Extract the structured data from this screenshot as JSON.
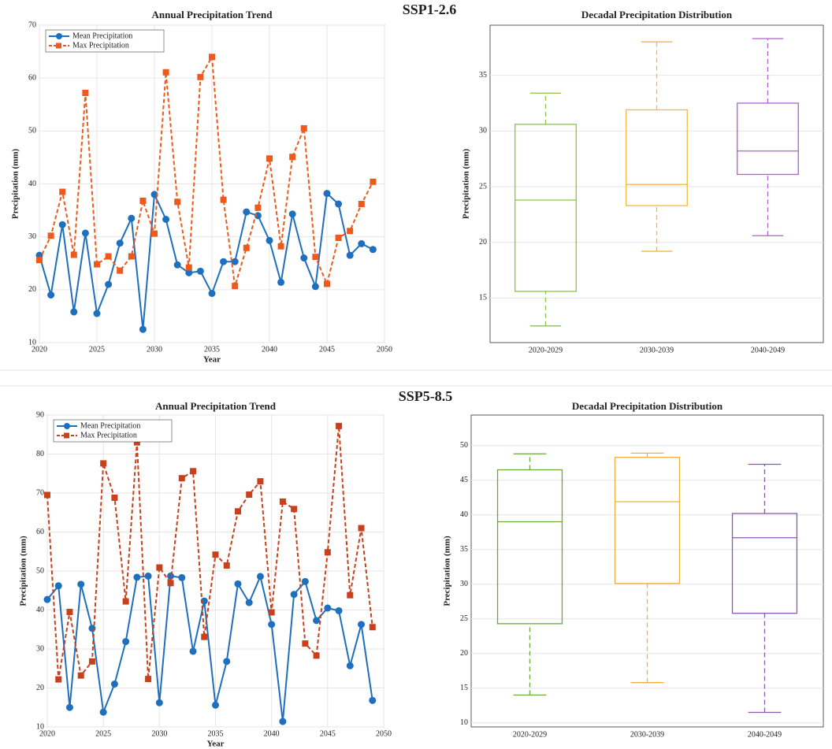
{
  "section_titles": [
    "SSP1-2.6",
    "SSP5-8.5"
  ],
  "chart_data": [
    {
      "type": "line",
      "title": "Annual Precipitation Trend",
      "xlabel": "Year",
      "ylabel": "Precipitation (mm)",
      "x": [
        2020,
        2021,
        2022,
        2023,
        2024,
        2025,
        2026,
        2027,
        2028,
        2029,
        2030,
        2031,
        2032,
        2033,
        2034,
        2035,
        2036,
        2037,
        2038,
        2039,
        2040,
        2041,
        2042,
        2043,
        2044,
        2045,
        2046,
        2047,
        2048,
        2049
      ],
      "series": [
        {
          "name": "Mean Precipitation",
          "color": "#1f6fbf",
          "marker": "circle",
          "linestyle": "solid",
          "values": [
            26.5,
            19,
            32.3,
            15.8,
            30.7,
            15.5,
            21,
            28.8,
            33.5,
            12.5,
            38,
            33.3,
            24.7,
            23.2,
            23.5,
            19.3,
            25.3,
            25.3,
            34.7,
            34,
            29.3,
            21.4,
            34.3,
            26,
            20.6,
            38.2,
            36.2,
            26.5,
            28.7,
            27.6
          ]
        },
        {
          "name": "Max Precipitation",
          "color": "#ee5a1c",
          "marker": "square",
          "linestyle": "dashed",
          "values": [
            25.6,
            30.2,
            38.5,
            26.6,
            57.2,
            24.8,
            26.3,
            23.6,
            26.3,
            36.8,
            30.6,
            61.1,
            36.6,
            24.2,
            60.2,
            64,
            37,
            20.7,
            27.9,
            35.5,
            44.8,
            28.2,
            45.1,
            50.5,
            26.2,
            21.1,
            29.8,
            31.1,
            36.2,
            40.4
          ]
        }
      ],
      "xlim": [
        2020,
        2050
      ],
      "xticks": [
        2020,
        2025,
        2030,
        2035,
        2040,
        2045,
        2050
      ],
      "ylim": [
        10,
        70
      ],
      "yticks": [
        10,
        20,
        30,
        40,
        50,
        60,
        70
      ],
      "grid": true,
      "legend": "upper-left"
    },
    {
      "type": "box",
      "title": "Decadal Precipitation Distribution",
      "ylabel": "Precipitation (mm)",
      "categories": [
        "2020-2029",
        "2030-2039",
        "2040-2049"
      ],
      "colors": [
        "#8cc63f",
        "#f5b841",
        "#b45fd0"
      ],
      "whisker_low": [
        12.5,
        19.2,
        20.6
      ],
      "q1": [
        15.6,
        23.3,
        26.1
      ],
      "median": [
        23.8,
        25.2,
        28.2
      ],
      "q3": [
        30.6,
        31.9,
        32.5
      ],
      "whisker_high": [
        33.4,
        38.0,
        38.3
      ],
      "ylim": [
        11,
        39.5
      ],
      "yticks": [
        15,
        20,
        25,
        30,
        35
      ],
      "grid": true
    },
    {
      "type": "line",
      "title": "Annual Precipitation Trend",
      "xlabel": "Year",
      "ylabel": "Precipitation (mm)",
      "x": [
        2020,
        2021,
        2022,
        2023,
        2024,
        2025,
        2026,
        2027,
        2028,
        2029,
        2030,
        2031,
        2032,
        2033,
        2034,
        2035,
        2036,
        2037,
        2038,
        2039,
        2040,
        2041,
        2042,
        2043,
        2044,
        2045,
        2046,
        2047,
        2048,
        2049
      ],
      "series": [
        {
          "name": "Mean Precipitation",
          "color": "#1f6fbf",
          "marker": "circle",
          "linestyle": "solid",
          "values": [
            42.7,
            46.2,
            15,
            46.6,
            35.3,
            13.8,
            21,
            31.9,
            48.4,
            48.7,
            16.2,
            48.7,
            48.3,
            29.4,
            42.3,
            15.6,
            26.8,
            46.7,
            41.9,
            48.6,
            36.3,
            11.4,
            44,
            47.3,
            37.3,
            40.5,
            39.8,
            25.7,
            36.3,
            16.8
          ]
        },
        {
          "name": "Max Precipitation",
          "color": "#c8401c",
          "marker": "square",
          "linestyle": "dashed",
          "values": [
            69.5,
            22.2,
            39.5,
            23.2,
            26.8,
            77.6,
            68.8,
            42.2,
            83,
            22.3,
            50.9,
            46.9,
            73.8,
            75.6,
            33.1,
            54.2,
            51.4,
            65.3,
            69.6,
            73,
            39.4,
            67.8,
            65.9,
            31.4,
            28.3,
            54.8,
            87.2,
            43.8,
            61,
            35.6
          ]
        }
      ],
      "xlim": [
        2020,
        2050
      ],
      "xticks": [
        2020,
        2025,
        2030,
        2035,
        2040,
        2045,
        2050
      ],
      "ylim": [
        10,
        90
      ],
      "yticks": [
        10,
        20,
        30,
        40,
        50,
        60,
        70,
        80,
        90
      ],
      "grid": true,
      "legend": "upper-left"
    },
    {
      "type": "box",
      "title": "Decadal Precipitation Distribution",
      "ylabel": "Precipitation (mm)",
      "categories": [
        "2020-2029",
        "2030-2039",
        "2040-2049"
      ],
      "colors": [
        "#6aa83a",
        "#f0b040",
        "#8c5aa8"
      ],
      "whisker_low": [
        14.0,
        15.8,
        11.5
      ],
      "q1": [
        24.3,
        30.1,
        25.8
      ],
      "median": [
        39.0,
        41.9,
        36.7
      ],
      "q3": [
        46.5,
        48.3,
        40.2
      ],
      "whisker_high": [
        48.8,
        48.9,
        47.3
      ],
      "ylim": [
        9.4,
        54.4
      ],
      "yticks": [
        10,
        15,
        20,
        25,
        30,
        35,
        40,
        45,
        50
      ],
      "grid": true
    }
  ]
}
